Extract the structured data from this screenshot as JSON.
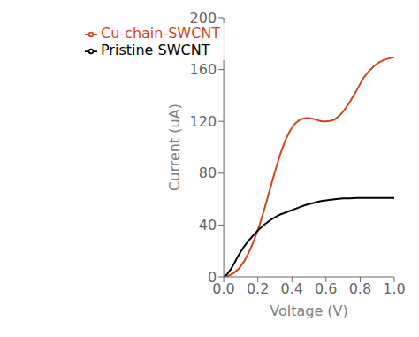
{
  "chart_data": {
    "type": "line",
    "title": "",
    "xlabel": "Voltage (V)",
    "ylabel": "Current (uA)",
    "xlim": [
      0.0,
      1.0
    ],
    "ylim": [
      0,
      200
    ],
    "xticks": [
      {
        "value": 0,
        "label": "0.0"
      },
      0.2,
      0.4,
      0.6,
      0.8,
      {
        "value": 1,
        "label": "1.0"
      }
    ],
    "yticks": [
      0,
      40,
      80,
      120,
      160,
      200
    ],
    "grid": false,
    "legend": "upper left",
    "series": [
      {
        "name": "Cu-chain-SWCNT",
        "color": "#d4451a",
        "x": [
          0.0,
          0.03,
          0.06,
          0.09,
          0.12,
          0.15,
          0.18,
          0.21,
          0.24,
          0.27,
          0.3,
          0.33,
          0.36,
          0.39,
          0.42,
          0.45,
          0.48,
          0.5,
          0.52,
          0.54,
          0.56,
          0.58,
          0.6,
          0.63,
          0.65,
          0.68,
          0.7,
          0.73,
          0.76,
          0.79,
          0.82,
          0.85,
          0.88,
          0.91,
          0.94,
          0.97,
          1.0
        ],
        "values": [
          0.0,
          1.0,
          3.0,
          6.5,
          12.0,
          19.5,
          29.0,
          40.0,
          53.0,
          67.0,
          81.0,
          94.0,
          105.0,
          113.0,
          118.5,
          121.5,
          122.5,
          122.5,
          122.0,
          121.5,
          120.5,
          120.0,
          120.0,
          120.5,
          121.5,
          124.5,
          127.5,
          133.0,
          139.5,
          146.5,
          153.5,
          158.5,
          162.5,
          165.5,
          167.5,
          168.5,
          169.5
        ]
      },
      {
        "name": "Pristine SWCNT",
        "color": "#000000",
        "x": [
          0.0,
          0.02,
          0.04,
          0.06,
          0.08,
          0.1,
          0.12,
          0.15,
          0.18,
          0.21,
          0.24,
          0.27,
          0.3,
          0.33,
          0.36,
          0.39,
          0.42,
          0.45,
          0.48,
          0.51,
          0.54,
          0.57,
          0.6,
          0.63,
          0.66,
          0.7,
          0.74,
          0.78,
          0.82,
          0.86,
          0.9,
          0.95,
          1.0
        ],
        "values": [
          0.0,
          2.0,
          5.5,
          10.0,
          15.0,
          19.5,
          23.5,
          28.5,
          33.0,
          37.0,
          40.5,
          43.5,
          46.0,
          48.0,
          49.5,
          51.0,
          52.5,
          54.0,
          55.5,
          56.5,
          57.5,
          58.5,
          59.0,
          59.5,
          60.0,
          60.5,
          60.5,
          61.0,
          61.0,
          61.0,
          61.0,
          61.0,
          61.0
        ]
      }
    ]
  }
}
